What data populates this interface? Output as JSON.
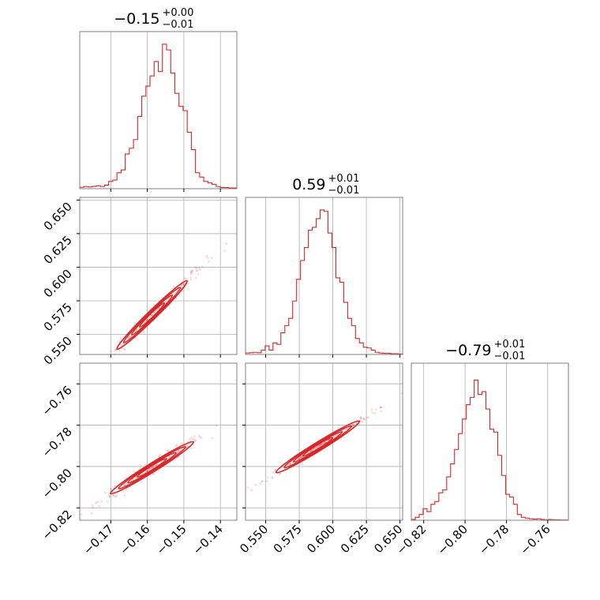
{
  "chart_data": {
    "type": "corner",
    "color": "#d62728",
    "params": [
      {
        "median": "−0.15",
        "plus": "+0.00",
        "minus": "−0.01",
        "range": [
          -0.1785,
          -0.1355
        ],
        "ticks": [
          -0.17,
          -0.16,
          -0.15,
          -0.14
        ],
        "tick_labels": [
          "−0.17",
          "−0.16",
          "−0.15",
          "−0.14"
        ]
      },
      {
        "median": "0.59",
        "plus": "+0.01",
        "minus": "−0.01",
        "range": [
          0.535,
          0.652
        ],
        "ticks": [
          0.55,
          0.575,
          0.6,
          0.625,
          0.65
        ],
        "tick_labels": [
          "0.550",
          "0.575",
          "0.600",
          "0.625",
          "0.650"
        ]
      },
      {
        "median": "−0.79",
        "plus": "+0.01",
        "minus": "−0.01",
        "range": [
          -0.826,
          -0.75
        ],
        "ticks": [
          -0.82,
          -0.8,
          -0.78,
          -0.76
        ],
        "tick_labels": [
          "−0.82",
          "−0.80",
          "−0.78",
          "−0.76"
        ]
      }
    ],
    "histograms": [
      {
        "param": 0,
        "weights": [
          0.01,
          0.015,
          0.012,
          0.016,
          0.02,
          0.015,
          0.025,
          0.05,
          0.06,
          0.11,
          0.13,
          0.24,
          0.28,
          0.34,
          0.5,
          0.64,
          0.71,
          0.78,
          0.88,
          0.81,
          1.0,
          0.96,
          0.8,
          0.66,
          0.57,
          0.54,
          0.39,
          0.27,
          0.11,
          0.08,
          0.05,
          0.04,
          0.03,
          0.015,
          0.008,
          0.008,
          0.005,
          0.005
        ]
      },
      {
        "param": 1,
        "weights": [
          0.01,
          0.012,
          0.015,
          0.012,
          0.03,
          0.06,
          0.03,
          0.08,
          0.07,
          0.15,
          0.2,
          0.25,
          0.37,
          0.52,
          0.65,
          0.74,
          0.86,
          0.88,
          0.94,
          1.0,
          0.99,
          0.84,
          0.74,
          0.53,
          0.5,
          0.36,
          0.25,
          0.2,
          0.11,
          0.08,
          0.05,
          0.045,
          0.03,
          0.015,
          0.01,
          0.008,
          0.008,
          0.005,
          0.005,
          0.003
        ]
      },
      {
        "param": 2,
        "weights": [
          0.005,
          0.02,
          0.04,
          0.08,
          0.06,
          0.11,
          0.13,
          0.19,
          0.21,
          0.3,
          0.39,
          0.49,
          0.6,
          0.7,
          0.8,
          0.85,
          0.97,
          0.87,
          0.89,
          0.77,
          0.63,
          0.61,
          0.45,
          0.31,
          0.18,
          0.16,
          0.11,
          0.04,
          0.02,
          0.015,
          0.01,
          0.008,
          0.01,
          0.005,
          0.003,
          0.005,
          0.003,
          0.003,
          0.002,
          0.002
        ]
      }
    ],
    "scatter_relations": [
      {
        "x": 0,
        "y": 1,
        "slope": 2.65,
        "intercept": 0.985,
        "scatter_sd": 0.0025
      },
      {
        "x": 0,
        "y": 2,
        "slope": 1.1,
        "intercept": -0.626,
        "scatter_sd": 0.0015
      },
      {
        "x": 1,
        "y": 2,
        "slope": 0.4,
        "intercept": -1.026,
        "scatter_sd": 0.001
      }
    ]
  }
}
